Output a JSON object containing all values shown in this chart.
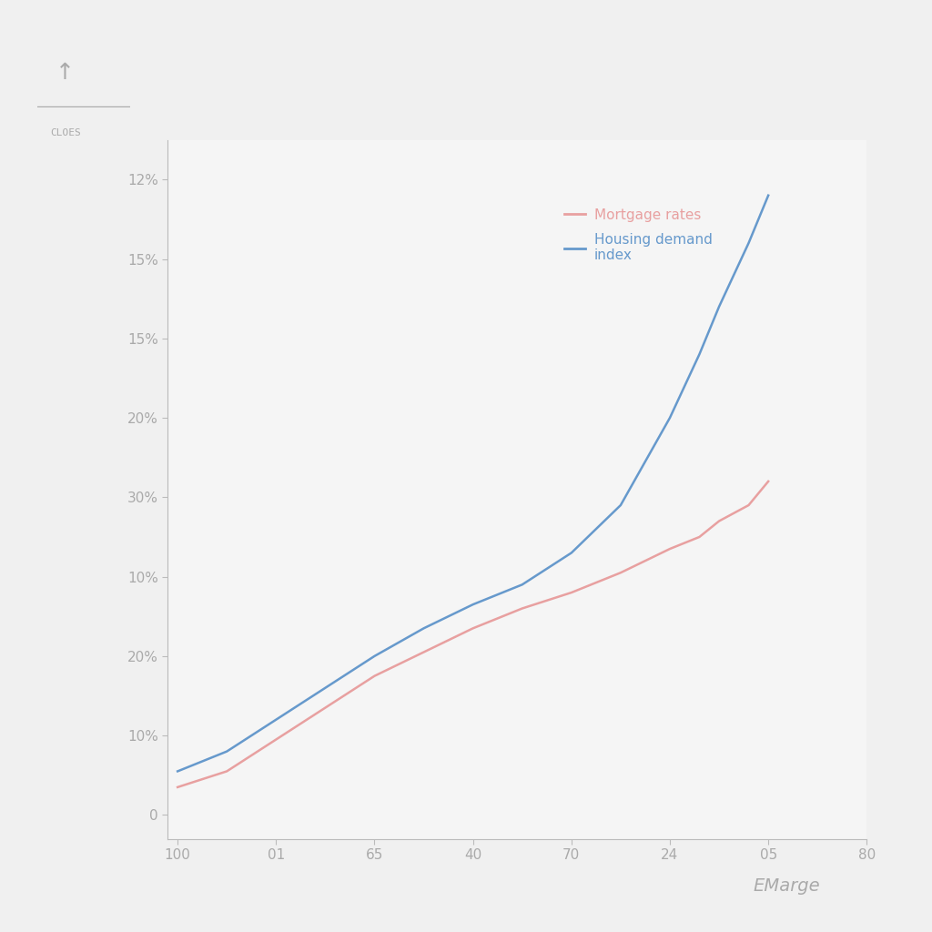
{
  "background_color": "#f0f0f0",
  "plot_bg_color": "#f5f5f5",
  "x_labels": [
    "100",
    "01",
    "65",
    "40",
    "70",
    "24",
    "05",
    "80"
  ],
  "x_values": [
    0,
    1,
    2,
    3,
    4,
    5,
    6,
    7
  ],
  "y_labels": [
    "0",
    "10%",
    "20%",
    "10%",
    "30%",
    "20%",
    "15%",
    "15%",
    "12%"
  ],
  "y_values": [
    0,
    1,
    2,
    3,
    4,
    5,
    6,
    7,
    8
  ],
  "mortgage_x": [
    0,
    0.5,
    1.0,
    1.5,
    2.0,
    2.5,
    3.0,
    3.5,
    4.0,
    4.5,
    5.0,
    5.3,
    5.5,
    5.8,
    6.0
  ],
  "mortgage_y": [
    0.35,
    0.55,
    0.95,
    1.35,
    1.75,
    2.05,
    2.35,
    2.6,
    2.8,
    3.05,
    3.35,
    3.5,
    3.7,
    3.9,
    4.2
  ],
  "demand_x": [
    0,
    0.5,
    1.0,
    1.5,
    2.0,
    2.5,
    3.0,
    3.5,
    4.0,
    4.5,
    5.0,
    5.3,
    5.5,
    5.8,
    6.0
  ],
  "demand_y": [
    0.55,
    0.8,
    1.2,
    1.6,
    2.0,
    2.35,
    2.65,
    2.9,
    3.3,
    3.9,
    5.0,
    5.8,
    6.4,
    7.2,
    7.8
  ],
  "mortgage_color": "#e8a0a0",
  "demand_color": "#6699cc",
  "axis_color": "#bbbbbb",
  "label_color": "#aaaaaa",
  "legend_mortgage": "Mortgage rates",
  "legend_demand": "Housing demand\nindex",
  "emarge_text": "EMarge",
  "arrow_label": "CLOES",
  "title_fontsize": 11,
  "label_fontsize": 11,
  "legend_fontsize": 11
}
